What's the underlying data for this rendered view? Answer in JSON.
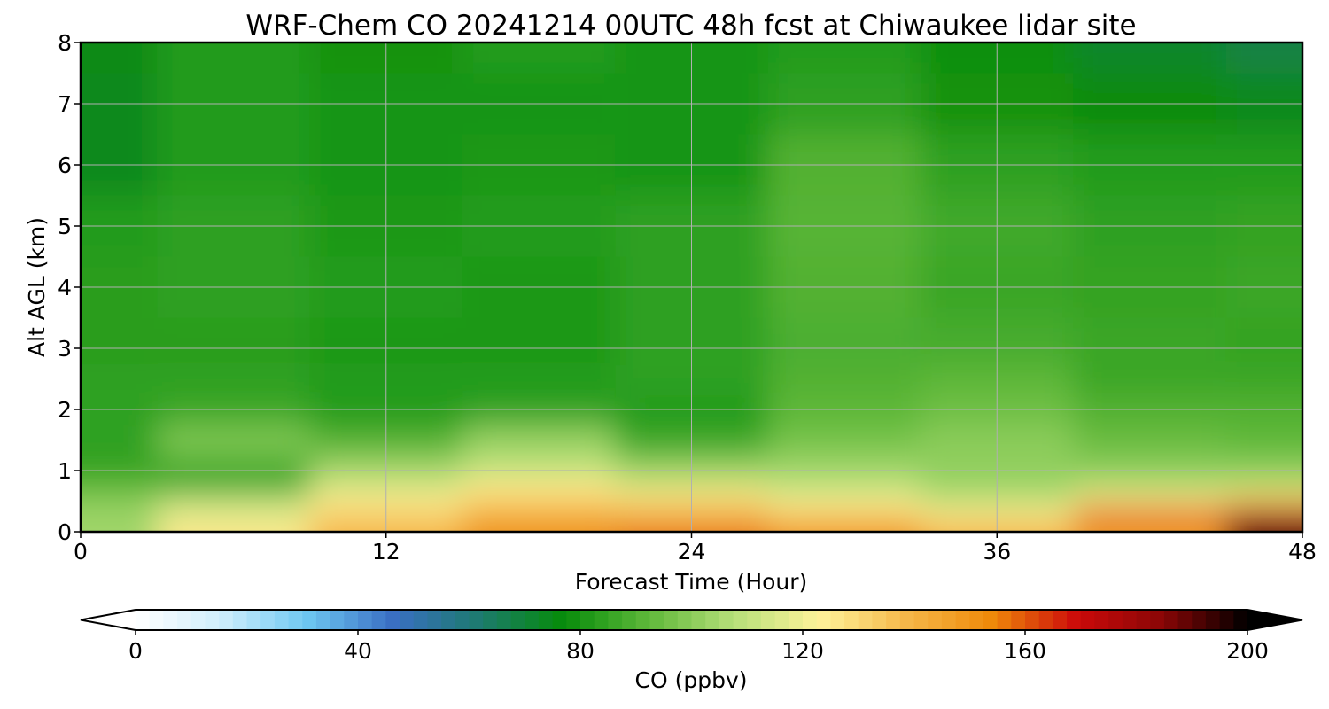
{
  "chart_data": {
    "type": "heatmap",
    "title": "WRF-Chem CO  20241214 00UTC 48h fcst at Chiwaukee lidar site",
    "xlabel": "Forecast Time (Hour)",
    "ylabel": "Alt AGL (km)",
    "xlim": [
      0,
      48
    ],
    "ylim": [
      0,
      8
    ],
    "xticks": [
      "0",
      "12",
      "24",
      "36",
      "48"
    ],
    "yticks": [
      "0",
      "1",
      "2",
      "3",
      "4",
      "5",
      "6",
      "7",
      "8"
    ],
    "grid": true,
    "colorbar": {
      "label": "CO  (ppbv)",
      "min": 0,
      "max": 200,
      "ticks": [
        "0",
        "40",
        "80",
        "120",
        "160",
        "200"
      ],
      "extend": "both",
      "colors": [
        "#ffffff",
        "#cfeefc",
        "#6ec8f2",
        "#3a6fc4",
        "#1d7a70",
        "#068c0a",
        "#5fb83a",
        "#b7e07a",
        "#fef29a",
        "#f6b84a",
        "#ef8a0a",
        "#cc0a0a",
        "#8a0606",
        "#000000"
      ]
    },
    "times": [
      0,
      6,
      12,
      18,
      24,
      30,
      36,
      42,
      48
    ],
    "altitudes": [
      0,
      0.25,
      0.5,
      0.75,
      1.0,
      1.5,
      2.0,
      2.5,
      3.0,
      4.0,
      5.0,
      6.0,
      7.0,
      8.0
    ],
    "co_ppbv": [
      [
        104,
        126,
        140,
        152,
        156,
        150,
        140,
        148,
        192
      ],
      [
        103,
        118,
        132,
        142,
        140,
        134,
        126,
        160,
        175
      ],
      [
        100,
        110,
        125,
        133,
        130,
        122,
        112,
        128,
        135
      ],
      [
        92,
        84,
        114,
        124,
        116,
        108,
        102,
        108,
        110
      ],
      [
        85,
        88,
        104,
        110,
        102,
        104,
        101,
        100,
        100
      ],
      [
        84,
        98,
        90,
        102,
        86,
        96,
        100,
        94,
        92
      ],
      [
        84,
        86,
        82,
        84,
        82,
        92,
        95,
        90,
        90
      ],
      [
        84,
        84,
        82,
        82,
        84,
        90,
        92,
        86,
        86
      ],
      [
        83,
        83,
        81,
        81,
        84,
        89,
        88,
        86,
        85
      ],
      [
        83,
        84,
        82,
        81,
        84,
        90,
        86,
        85,
        86
      ],
      [
        82,
        84,
        81,
        82,
        84,
        91,
        87,
        84,
        85
      ],
      [
        74,
        82,
        80,
        81,
        80,
        90,
        84,
        82,
        82
      ],
      [
        74,
        82,
        80,
        80,
        80,
        84,
        79,
        76,
        74
      ],
      [
        75,
        82,
        79,
        82,
        80,
        82,
        78,
        72,
        68
      ]
    ]
  }
}
